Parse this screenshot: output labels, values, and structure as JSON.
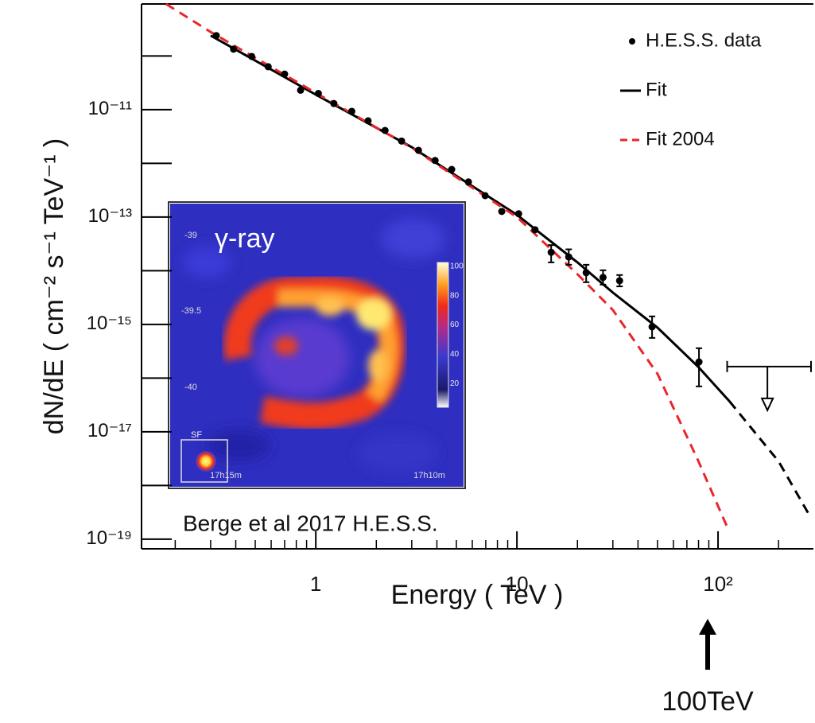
{
  "chart_data": {
    "type": "scatter",
    "xlabel": "Energy ( TeV )",
    "ylabel": "dN/dE ( cm⁻² s⁻¹ TeV⁻¹ )",
    "xlog": true,
    "ylog": true,
    "xlim": [
      0.136,
      298
    ],
    "ylim": [
      6.6e-20,
      9.3e-10
    ],
    "xticks": [
      1,
      10,
      {
        "value": 100,
        "label": "10²"
      }
    ],
    "xminorticks": [
      0.2,
      0.3,
      0.4,
      0.5,
      0.6,
      0.7,
      0.8,
      0.9,
      2,
      3,
      4,
      5,
      6,
      7,
      8,
      9,
      20,
      30,
      40,
      50,
      60,
      70,
      80,
      90,
      200
    ],
    "yticks": [
      {
        "value": 1e-11,
        "label": "10⁻¹¹"
      },
      {
        "value": 1e-13,
        "label": "10⁻¹³"
      },
      {
        "value": 1e-15,
        "label": "10⁻¹⁵"
      },
      {
        "value": 1e-17,
        "label": "10⁻¹⁷"
      },
      {
        "value": 1e-19,
        "label": "10⁻¹⁹"
      }
    ],
    "yminorticks": [
      1e-10,
      1e-12,
      1e-14,
      1e-16,
      1e-18
    ],
    "legend": "upper right",
    "series": [
      {
        "name": "H.E.S.S. data",
        "type": "scatter",
        "color": "#000000",
        "x": [
          0.32,
          0.39,
          0.48,
          0.58,
          0.7,
          0.84,
          1.03,
          1.23,
          1.51,
          1.82,
          2.21,
          2.67,
          3.24,
          3.92,
          4.74,
          5.74,
          6.95,
          8.41,
          10.2,
          12.3,
          14.8,
          18.1,
          22.1,
          26.8,
          32.4,
          47.0,
          80.4
        ],
        "values": [
          2.4e-10,
          1.34e-10,
          9.8e-11,
          6.3e-11,
          4.6e-11,
          2.3e-11,
          2e-11,
          1.3e-11,
          9.3e-12,
          6.2e-12,
          4.1e-12,
          2.6e-12,
          1.75e-12,
          1.13e-12,
          7.7e-13,
          4.5e-13,
          2.5e-13,
          1.27e-13,
          1.15e-13,
          5.8e-14,
          2.2e-14,
          1.8e-14,
          9.2e-15,
          7.5e-15,
          6.5e-15,
          9e-16,
          2e-16
        ],
        "err_high": [
          null,
          null,
          null,
          null,
          null,
          null,
          null,
          null,
          null,
          null,
          null,
          null,
          null,
          null,
          null,
          null,
          null,
          null,
          null,
          null,
          3e-14,
          2.5e-14,
          1.29e-14,
          1.02e-14,
          8.3e-15,
          1.41e-15,
          3.6e-16
        ],
        "err_low": [
          null,
          null,
          null,
          null,
          null,
          null,
          null,
          null,
          null,
          null,
          null,
          null,
          null,
          null,
          null,
          null,
          null,
          null,
          null,
          null,
          1.43e-14,
          1.29e-14,
          6.1e-15,
          5.5e-15,
          5.1e-15,
          5.6e-16,
          7e-17
        ]
      },
      {
        "name": "Fit",
        "type": "line",
        "color": "#000000",
        "dash": false,
        "x": [
          0.3,
          1,
          3,
          10,
          20,
          30,
          50,
          80,
          114
        ],
        "values": [
          2.4e-10,
          1.9e-11,
          2e-12,
          1.1e-13,
          1.43e-14,
          3.9e-15,
          8.7e-16,
          1.6e-16,
          3.7e-17
        ],
        "extrapolation": {
          "x": [
            114,
            200,
            280
          ],
          "values": [
            3.7e-17,
            2.8e-18,
            3.1e-19
          ]
        }
      },
      {
        "name": "Fit 2004",
        "type": "line",
        "color": "#e8262b",
        "dash": true,
        "x": [
          0.18,
          0.3,
          1,
          3,
          10,
          20,
          30,
          50,
          80,
          112
        ],
        "values": [
          9.3e-10,
          2.8e-10,
          2.05e-11,
          1.95e-12,
          1e-13,
          8.6e-15,
          1.85e-15,
          1.2e-16,
          2.8e-18,
          1.56e-19
        ]
      }
    ],
    "upper_limit": {
      "x": 176,
      "x_low": 111,
      "x_high": 290,
      "value": 1.64e-16
    },
    "annotations": [
      {
        "text": "Berge et al 2017  H.E.S.S."
      },
      {
        "text": "100TeV"
      }
    ],
    "inset": {
      "title": "γ-ray",
      "dec_labels": [
        "-39",
        "-39.5",
        "-40"
      ],
      "ra_labels": [
        "17h15m",
        "17h10m"
      ],
      "psf_label": "SF",
      "colorbar_ticks": [
        100,
        80,
        60,
        40,
        20
      ]
    }
  }
}
